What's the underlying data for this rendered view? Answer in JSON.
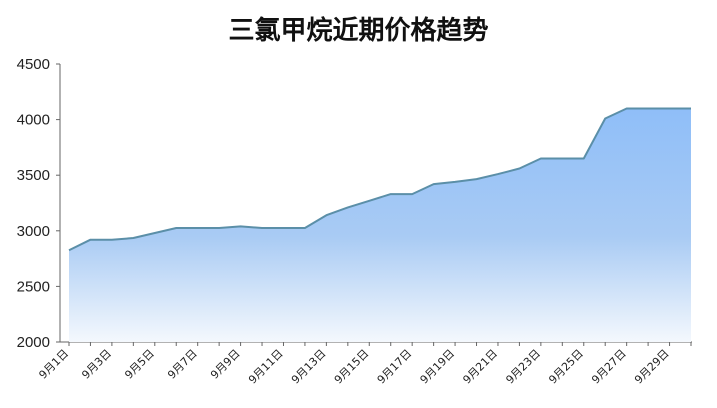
{
  "chart_data": {
    "type": "area",
    "title": "三氯甲烷近期价格趋势",
    "xlabel": "",
    "ylabel": "",
    "ylim": [
      2000,
      4500
    ],
    "yticks": [
      "2000",
      "2500",
      "3000",
      "3500",
      "4000",
      "4500"
    ],
    "categories": [
      "9月1日",
      "9月2日",
      "9月3日",
      "9月4日",
      "9月5日",
      "9月6日",
      "9月7日",
      "9月8日",
      "9月9日",
      "9月10日",
      "9月11日",
      "9月12日",
      "9月13日",
      "9月14日",
      "9月15日",
      "9月16日",
      "9月17日",
      "9月18日",
      "9月19日",
      "9月20日",
      "9月21日",
      "9月22日",
      "9月23日",
      "9月24日",
      "9月25日",
      "9月26日",
      "9月27日",
      "9月28日",
      "9月29日",
      "9月30日"
    ],
    "xtick_labels": [
      "9月1日",
      "9月3日",
      "9月5日",
      "9月7日",
      "9月9日",
      "9月11日",
      "9月13日",
      "9月15日",
      "9月17日",
      "9月19日",
      "9月21日",
      "9月23日",
      "9月25日",
      "9月27日",
      "9月29日"
    ],
    "values": [
      2825,
      2920,
      2920,
      2935,
      2980,
      3025,
      3025,
      3025,
      3040,
      3025,
      3025,
      3025,
      3140,
      3210,
      3270,
      3330,
      3330,
      3420,
      3440,
      3465,
      3510,
      3560,
      3650,
      3650,
      3650,
      4010,
      4100,
      4100,
      4100,
      4100
    ],
    "grid": false,
    "colors": {
      "line": "#5b8fa8",
      "fill_top": "#8fbef8",
      "fill_bottom": "#f4f8fd",
      "axis": "#666666"
    }
  }
}
